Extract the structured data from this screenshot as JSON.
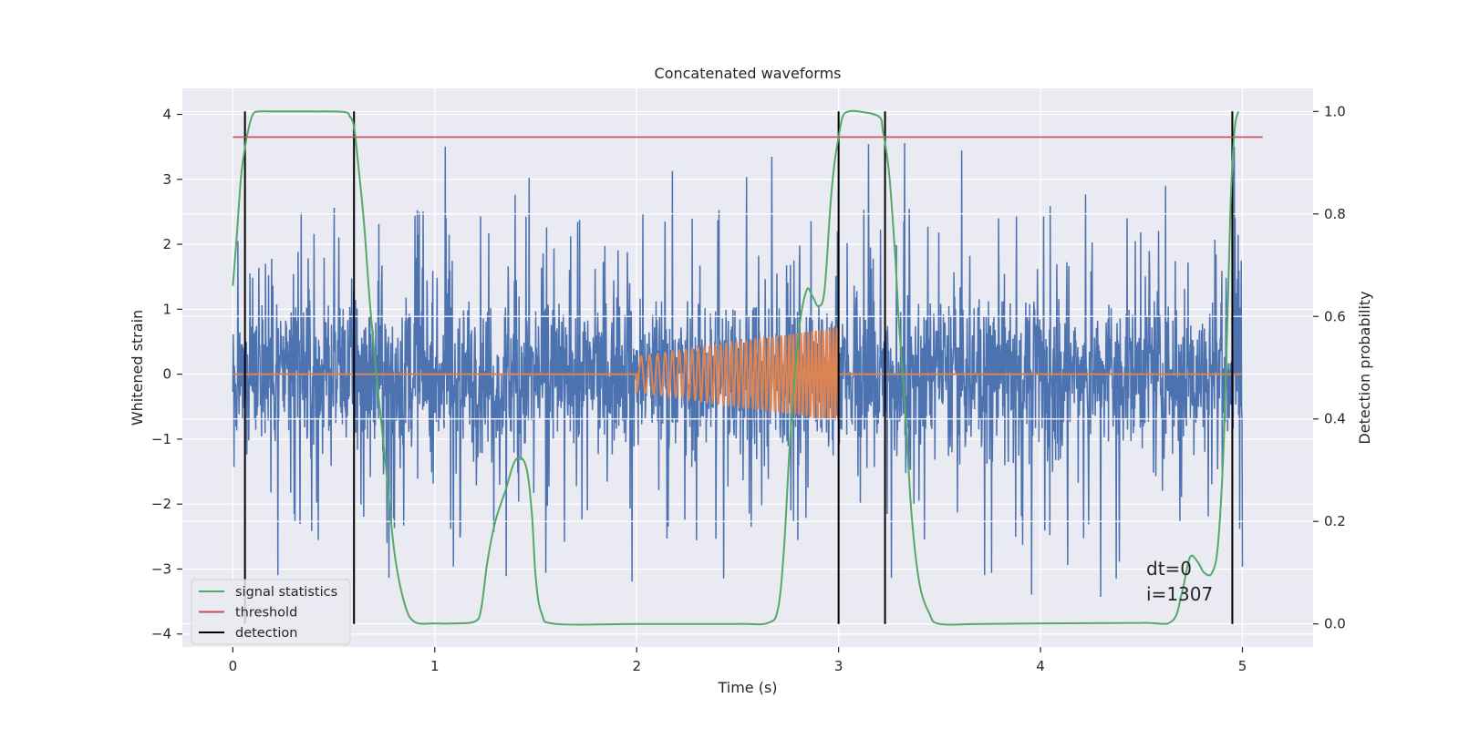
{
  "chart_data": {
    "type": "line",
    "title": "Concatenated waveforms",
    "xlabel": "Time (s)",
    "ylabel": "Whitened strain",
    "y2label": "Detection probability",
    "xlim": [
      -0.25,
      5.35
    ],
    "ylim": [
      -4.2,
      4.4
    ],
    "y2lim": [
      -0.045,
      1.045
    ],
    "grid": true,
    "legend_position": "lower-left",
    "colors": {
      "strain": "#4c72b0",
      "injection": "#dd8452",
      "signal_statistics": "#55a868",
      "threshold": "#c44e52",
      "detection": "#000000",
      "background": "#eaeaf2"
    },
    "x_ticks": [
      {
        "value": 0,
        "label": "0"
      },
      {
        "value": 1,
        "label": "1"
      },
      {
        "value": 2,
        "label": "2"
      },
      {
        "value": 3,
        "label": "3"
      },
      {
        "value": 4,
        "label": "4"
      },
      {
        "value": 5,
        "label": "5"
      }
    ],
    "y_ticks": [
      {
        "value": 4,
        "label": "4"
      },
      {
        "value": 3,
        "label": "3"
      },
      {
        "value": 2,
        "label": "2"
      },
      {
        "value": 1,
        "label": "1"
      },
      {
        "value": 0,
        "label": "0"
      },
      {
        "value": -1,
        "label": "−1"
      },
      {
        "value": -2,
        "label": "−2"
      },
      {
        "value": -3,
        "label": "−3"
      },
      {
        "value": -4,
        "label": "−4"
      }
    ],
    "y2_ticks": [
      {
        "value": 1.0,
        "label": "1.0"
      },
      {
        "value": 0.8,
        "label": "0.8"
      },
      {
        "value": 0.6,
        "label": "0.6"
      },
      {
        "value": 0.4,
        "label": "0.4"
      },
      {
        "value": 0.2,
        "label": "0.2"
      },
      {
        "value": 0.0,
        "label": "0.0"
      }
    ],
    "strain": {
      "x_start": 0,
      "x_end": 5,
      "amplitude_core": 1.0,
      "peak_max": 4.0,
      "peak_min": -3.65
    },
    "injection": {
      "x_start": 2.0,
      "x_end": 3.0,
      "amp_start": 0.27,
      "amp_end": 0.72,
      "freq_start": 22,
      "freq_end": 60
    },
    "threshold": {
      "value": 0.95,
      "x_range": [
        0,
        5.1
      ]
    },
    "signal_statistics": {
      "x": [
        0.0,
        0.02,
        0.04,
        0.06,
        0.08,
        0.1,
        0.13,
        0.2,
        0.4,
        0.55,
        0.58,
        0.6,
        0.62,
        0.65,
        0.68,
        0.72,
        0.76,
        0.8,
        0.85,
        0.9,
        1.0,
        1.1,
        1.2,
        1.23,
        1.26,
        1.3,
        1.35,
        1.4,
        1.45,
        1.48,
        1.5,
        1.53,
        1.6,
        2.0,
        2.5,
        2.65,
        2.7,
        2.73,
        2.76,
        2.8,
        2.84,
        2.87,
        2.9,
        2.93,
        2.96,
        2.98,
        3.0,
        3.02,
        3.05,
        3.1,
        3.2,
        3.22,
        3.25,
        3.28,
        3.3,
        3.33,
        3.36,
        3.4,
        3.45,
        3.5,
        3.7,
        4.0,
        4.5,
        4.65,
        4.7,
        4.74,
        4.78,
        4.81,
        4.85,
        4.88,
        4.91,
        4.94,
        4.96,
        4.98
      ],
      "y": [
        0.66,
        0.76,
        0.87,
        0.93,
        0.97,
        0.995,
        1.0,
        1.0,
        1.0,
        0.999,
        0.99,
        0.97,
        0.9,
        0.78,
        0.62,
        0.45,
        0.3,
        0.14,
        0.04,
        0.004,
        0.001,
        0.001,
        0.005,
        0.03,
        0.12,
        0.2,
        0.26,
        0.32,
        0.31,
        0.22,
        0.09,
        0.02,
        0.0,
        0.0,
        0.0,
        0.002,
        0.03,
        0.15,
        0.36,
        0.56,
        0.65,
        0.64,
        0.62,
        0.65,
        0.82,
        0.9,
        0.95,
        0.99,
        1.0,
        1.0,
        0.99,
        0.96,
        0.88,
        0.72,
        0.58,
        0.42,
        0.22,
        0.08,
        0.02,
        0.0,
        0.0,
        0.001,
        0.002,
        0.005,
        0.06,
        0.13,
        0.12,
        0.1,
        0.1,
        0.16,
        0.38,
        0.8,
        0.96,
        1.0
      ]
    },
    "detections": [
      0.06,
      0.6,
      3.0,
      3.23,
      4.95
    ],
    "legend": [
      {
        "label": "signal statistics",
        "color": "#55a868"
      },
      {
        "label": "threshold",
        "color": "#c44e52"
      },
      {
        "label": "detection",
        "color": "#000000"
      }
    ],
    "annotations": [
      "dt=0",
      "i=1307"
    ]
  }
}
